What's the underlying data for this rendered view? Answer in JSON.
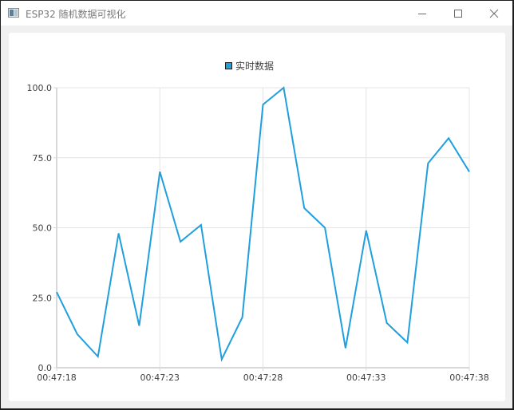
{
  "window": {
    "title": "ESP32 随机数据可视化",
    "controls": {
      "minimize_icon": "minimize-icon",
      "maximize_icon": "maximize-icon",
      "close_icon": "close-icon"
    }
  },
  "colors": {
    "series": "#209fdf",
    "grid": "#e4e4e4",
    "axis": "#d8d8d8",
    "background": "#ffffff",
    "frame": "#f0f0f0"
  },
  "legend": {
    "label": "实时数据"
  },
  "chart_data": {
    "type": "line",
    "title": "",
    "xlabel": "",
    "ylabel": "",
    "legend": [
      "实时数据"
    ],
    "legend_position": "top",
    "grid": true,
    "ylim": [
      0,
      100
    ],
    "y_ticks": [
      "0.0",
      "25.0",
      "50.0",
      "75.0",
      "100.0"
    ],
    "x_ticks": [
      "00:47:18",
      "00:47:23",
      "00:47:28",
      "00:47:33",
      "00:47:38"
    ],
    "x_range": [
      "00:47:18",
      "00:47:38"
    ],
    "series": [
      {
        "name": "实时数据",
        "x": [
          "00:47:18",
          "00:47:19",
          "00:47:20",
          "00:47:21",
          "00:47:22",
          "00:47:23",
          "00:47:24",
          "00:47:25",
          "00:47:26",
          "00:47:27",
          "00:47:28",
          "00:47:29",
          "00:47:30",
          "00:47:31",
          "00:47:32",
          "00:47:33",
          "00:47:34",
          "00:47:35",
          "00:47:36",
          "00:47:37",
          "00:47:38"
        ],
        "values": [
          27,
          12,
          4,
          48,
          15,
          70,
          45,
          51,
          3,
          18,
          94,
          100,
          57,
          50,
          7,
          49,
          16,
          9,
          73,
          82,
          70
        ]
      }
    ]
  }
}
